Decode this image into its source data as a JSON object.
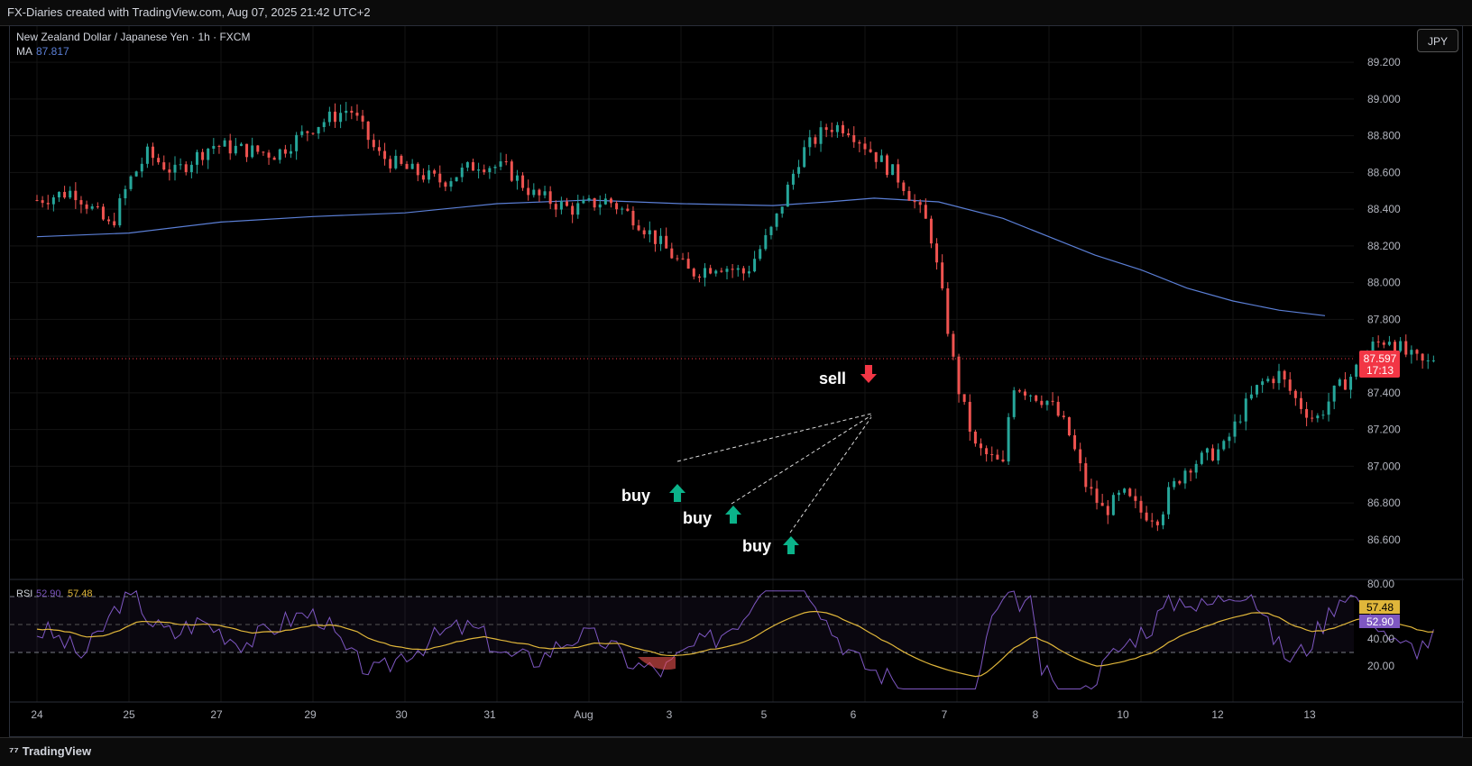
{
  "header": {
    "title": "FX-Diaries created with TradingView.com, Aug 07, 2025 21:42 UTC+2"
  },
  "legend": {
    "symbol": "New Zealand Dollar / Japanese Yen · 1h · FXCM",
    "ma_label": "MA",
    "ma_value": "87.817",
    "rsi_label": "RSI",
    "rsi_value": "52.90",
    "rsi_ma_value": "57.48"
  },
  "currency_button": "JPY",
  "price_axis": {
    "ticks": [
      "89.200",
      "89.000",
      "88.800",
      "88.600",
      "88.400",
      "88.200",
      "88.000",
      "87.800",
      "87.400",
      "87.200",
      "87.000",
      "86.800",
      "86.600"
    ],
    "last_price": "87.597",
    "countdown": "17:13"
  },
  "rsi_axis": {
    "ticks": [
      "80.00",
      "40.00",
      "20.00"
    ],
    "ma_badge": "57.48",
    "rsi_badge": "52.90"
  },
  "time_axis": [
    "24",
    "25",
    "27",
    "29",
    "30",
    "31",
    "Aug",
    "3",
    "5",
    "6",
    "7",
    "8",
    "10",
    "12",
    "13"
  ],
  "annotations": {
    "buy1": "buy",
    "buy2": "buy",
    "buy3": "buy",
    "sell": "sell"
  },
  "colors": {
    "up": "#26a69a",
    "down": "#ef5350",
    "ma": "#5b7fd6",
    "rsi": "#7e57c2",
    "rsi_ma": "#e0b63a",
    "last_price": "#f23645"
  },
  "footer": {
    "brand": "TradingView"
  },
  "chart_data": {
    "type": "candlestick",
    "symbol": "NZDJPY",
    "timeframe": "1h",
    "ylim": [
      86.5,
      89.25
    ],
    "last_price": 87.597,
    "ma_value": 87.817,
    "series": [
      {
        "name": "price",
        "path": [
          [
            24,
            88.45
          ],
          [
            24.4,
            88.5
          ],
          [
            24.8,
            88.3
          ],
          [
            25,
            88.55
          ],
          [
            25.2,
            88.7
          ],
          [
            25.5,
            88.6
          ],
          [
            25.9,
            88.75
          ],
          [
            26.3,
            88.72
          ],
          [
            26.6,
            88.7
          ],
          [
            27,
            88.85
          ],
          [
            27.4,
            88.95
          ],
          [
            27.7,
            88.7
          ],
          [
            28,
            88.62
          ],
          [
            28.4,
            88.55
          ],
          [
            28.8,
            88.65
          ],
          [
            29.1,
            88.62
          ],
          [
            29.4,
            88.48
          ],
          [
            29.8,
            88.4
          ],
          [
            30.2,
            88.45
          ],
          [
            30.5,
            88.35
          ],
          [
            30.8,
            88.2
          ],
          [
            31.1,
            88.05
          ],
          [
            31.4,
            88.1
          ],
          [
            31.7,
            88.05
          ],
          [
            32,
            88.3
          ],
          [
            32.3,
            88.7
          ],
          [
            32.6,
            88.85
          ],
          [
            32.8,
            88.85
          ],
          [
            33.1,
            88.7
          ],
          [
            33.4,
            88.55
          ],
          [
            33.7,
            88.3
          ],
          [
            33.85,
            87.9
          ],
          [
            34,
            87.45
          ],
          [
            34.2,
            87.1
          ],
          [
            34.5,
            87.0
          ],
          [
            34.6,
            87.45
          ],
          [
            34.8,
            87.4
          ],
          [
            35,
            87.35
          ],
          [
            35.2,
            87.2
          ],
          [
            35.4,
            86.9
          ],
          [
            35.6,
            86.75
          ],
          [
            35.8,
            86.85
          ],
          [
            36,
            86.75
          ],
          [
            36.2,
            86.72
          ],
          [
            36.3,
            86.85
          ],
          [
            36.5,
            87.0
          ],
          [
            36.7,
            87.05
          ],
          [
            36.9,
            87.1
          ],
          [
            37.1,
            87.3
          ],
          [
            37.3,
            87.45
          ],
          [
            37.5,
            87.5
          ],
          [
            37.7,
            87.35
          ],
          [
            37.9,
            87.25
          ],
          [
            38.1,
            87.4
          ],
          [
            38.3,
            87.5
          ],
          [
            38.5,
            87.65
          ],
          [
            38.7,
            87.7
          ],
          [
            38.9,
            87.6
          ],
          [
            39.1,
            87.55
          ],
          [
            39.2,
            87.6
          ]
        ]
      },
      {
        "name": "MA",
        "path": [
          [
            24,
            88.25
          ],
          [
            25,
            88.27
          ],
          [
            26,
            88.33
          ],
          [
            27,
            88.36
          ],
          [
            28,
            88.38
          ],
          [
            29,
            88.43
          ],
          [
            30,
            88.45
          ],
          [
            31,
            88.43
          ],
          [
            32,
            88.42
          ],
          [
            32.6,
            88.44
          ],
          [
            33.1,
            88.46
          ],
          [
            33.8,
            88.44
          ],
          [
            34.5,
            88.35
          ],
          [
            35,
            88.25
          ],
          [
            35.5,
            88.15
          ],
          [
            36,
            88.07
          ],
          [
            36.5,
            87.97
          ],
          [
            37,
            87.9
          ],
          [
            37.5,
            87.85
          ],
          [
            38,
            87.82
          ]
        ]
      }
    ],
    "rsi": {
      "value": 52.9,
      "ma": 57.48,
      "levels": [
        70,
        50,
        30
      ],
      "ylim": [
        10,
        80
      ]
    },
    "annotations": [
      {
        "text": "buy",
        "x": 34.6,
        "y": 86.9,
        "marker": "up-arrow"
      },
      {
        "text": "buy",
        "x": 35.4,
        "y": 86.8,
        "marker": "up-arrow"
      },
      {
        "text": "buy",
        "x": 36.2,
        "y": 86.65,
        "marker": "up-arrow"
      },
      {
        "text": "sell",
        "x": 37.1,
        "y": 87.5,
        "marker": "down-arrow"
      }
    ]
  }
}
